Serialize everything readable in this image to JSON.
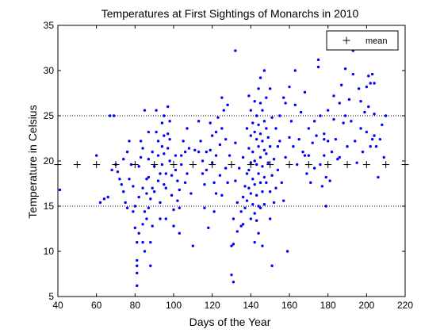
{
  "chart_data": {
    "type": "scatter",
    "title": "Temperatures at First Sightings of Monarchs in 2010",
    "xlabel": "Days of the Year",
    "ylabel": "Temperature in Celsius",
    "xlim": [
      40,
      220
    ],
    "ylim": [
      5,
      35
    ],
    "xticks": [
      40,
      60,
      80,
      100,
      120,
      140,
      160,
      180,
      200,
      220
    ],
    "yticks": [
      5,
      10,
      15,
      20,
      25,
      30,
      35
    ],
    "grid": false,
    "reference_lines": [
      25,
      15
    ],
    "legend": {
      "position": "top-right",
      "entries": [
        "mean"
      ]
    },
    "colors": {
      "scatter": "#0000ff",
      "mean": "#000000"
    },
    "series": [
      {
        "name": "mean",
        "marker": "plus",
        "x": [
          40,
          50,
          60,
          70,
          80,
          90,
          100,
          110,
          120,
          130,
          140,
          150,
          160,
          170,
          180,
          190,
          200,
          210,
          220
        ],
        "y": [
          19.6,
          19.6,
          19.6,
          19.6,
          19.6,
          19.6,
          19.6,
          19.6,
          19.6,
          19.6,
          19.6,
          19.6,
          19.6,
          19.6,
          19.6,
          19.6,
          19.6,
          19.6,
          19.6
        ]
      },
      {
        "marker": "dot",
        "points": [
          [
            41,
            16.8
          ],
          [
            60,
            20.6
          ],
          [
            62,
            15.4
          ],
          [
            64,
            15.8
          ],
          [
            66,
            16
          ],
          [
            67,
            25
          ],
          [
            69,
            25
          ],
          [
            68,
            19
          ],
          [
            70,
            19.6
          ],
          [
            71,
            18.8
          ],
          [
            72,
            18
          ],
          [
            73,
            17.4
          ],
          [
            74,
            16.6
          ],
          [
            75,
            15.4
          ],
          [
            76,
            14.8
          ],
          [
            77,
            18
          ],
          [
            78,
            19.6
          ],
          [
            74,
            20.2
          ],
          [
            76,
            21
          ],
          [
            77,
            22.2
          ],
          [
            79,
            14.4
          ],
          [
            79,
            17.2
          ],
          [
            80,
            15
          ],
          [
            80,
            12.6
          ],
          [
            81,
            11
          ],
          [
            81,
            9
          ],
          [
            81,
            8.4
          ],
          [
            81,
            7.6
          ],
          [
            81,
            6.2
          ],
          [
            82,
            12
          ],
          [
            82,
            16
          ],
          [
            82,
            19.4
          ],
          [
            83,
            20.4
          ],
          [
            83,
            22.2
          ],
          [
            84,
            21.4
          ],
          [
            84,
            17
          ],
          [
            84,
            13
          ],
          [
            84,
            11
          ],
          [
            85,
            10
          ],
          [
            85,
            14.4
          ],
          [
            85,
            25.6
          ],
          [
            86,
            18
          ],
          [
            86,
            16.4
          ],
          [
            86,
            13.6
          ],
          [
            87,
            23.2
          ],
          [
            87,
            20.2
          ],
          [
            87,
            18.2
          ],
          [
            88,
            15.8
          ],
          [
            88,
            11
          ],
          [
            88,
            8.4
          ],
          [
            89,
            12.8
          ],
          [
            89,
            17
          ],
          [
            89,
            21
          ],
          [
            90,
            19.4
          ],
          [
            90,
            16.6
          ],
          [
            91,
            25.6
          ],
          [
            91,
            23.2
          ],
          [
            92,
            20.6
          ],
          [
            92,
            22.2
          ],
          [
            92,
            17.8
          ],
          [
            93,
            18.6
          ],
          [
            93,
            15.4
          ],
          [
            93,
            13.6
          ],
          [
            94,
            24.2
          ],
          [
            94,
            21.6
          ],
          [
            94,
            19.6
          ],
          [
            95,
            25
          ],
          [
            95,
            22.8
          ],
          [
            95,
            20.8
          ],
          [
            96,
            18.6
          ],
          [
            96,
            17
          ],
          [
            96,
            13.6
          ],
          [
            97,
            26
          ],
          [
            97,
            23
          ],
          [
            97,
            21.4
          ],
          [
            98,
            24.4
          ],
          [
            98,
            22.4
          ],
          [
            98,
            20
          ],
          [
            99,
            18.4
          ],
          [
            99,
            16.2
          ],
          [
            100,
            14.6
          ],
          [
            100,
            12.8
          ],
          [
            101,
            20.6
          ],
          [
            101,
            19
          ],
          [
            102,
            17.8
          ],
          [
            102,
            15.6
          ],
          [
            103,
            14.8
          ],
          [
            103,
            12
          ],
          [
            103,
            16.8
          ],
          [
            104,
            19.6
          ],
          [
            104,
            20.6
          ],
          [
            105,
            22.2
          ],
          [
            106,
            17.6
          ],
          [
            106,
            21
          ],
          [
            107,
            18.6
          ],
          [
            107,
            23.6
          ],
          [
            108,
            21.4
          ],
          [
            109,
            16.4
          ],
          [
            110,
            10.6
          ],
          [
            111,
            21.2
          ],
          [
            113,
            24.4
          ],
          [
            113,
            21
          ],
          [
            114,
            22.2
          ],
          [
            115,
            20
          ],
          [
            115,
            18.6
          ],
          [
            116,
            17.4
          ],
          [
            116,
            14.8
          ],
          [
            117,
            21
          ],
          [
            117,
            19
          ],
          [
            118,
            12.6
          ],
          [
            119,
            24.2
          ],
          [
            119,
            21.2
          ],
          [
            120,
            22.8
          ],
          [
            120,
            19.8
          ],
          [
            121,
            17.6
          ],
          [
            121,
            14.4
          ],
          [
            122,
            16.4
          ],
          [
            122,
            20.6
          ],
          [
            123,
            24.8
          ],
          [
            124,
            21.8
          ],
          [
            124,
            18.4
          ],
          [
            125,
            16.2
          ],
          [
            125,
            23.6
          ],
          [
            126,
            25.6
          ],
          [
            127,
            22.4
          ],
          [
            127,
            19.2
          ],
          [
            128,
            17.6
          ],
          [
            128,
            26.2
          ],
          [
            129,
            20.6
          ],
          [
            130,
            10.6
          ],
          [
            130,
            7.4
          ],
          [
            131,
            6.6
          ],
          [
            131,
            10.8
          ],
          [
            131,
            13.6
          ],
          [
            132,
            32.2
          ],
          [
            132,
            22
          ],
          [
            132,
            17.8
          ],
          [
            133,
            15.4
          ],
          [
            133,
            12.2
          ],
          [
            134,
            19.2
          ],
          [
            135,
            12.8
          ],
          [
            135,
            14.4
          ],
          [
            136,
            16
          ],
          [
            136,
            13
          ],
          [
            136,
            20.4
          ],
          [
            137,
            17.2
          ],
          [
            137,
            14.8
          ],
          [
            138,
            23.6
          ],
          [
            138,
            18.6
          ],
          [
            138,
            15.6
          ],
          [
            139,
            21.4
          ],
          [
            139,
            19
          ],
          [
            139,
            17
          ],
          [
            140,
            25.6
          ],
          [
            140,
            22.8
          ],
          [
            140,
            19.8
          ],
          [
            140,
            16.4
          ],
          [
            140,
            13.6
          ],
          [
            141,
            24.2
          ],
          [
            141,
            21
          ],
          [
            141,
            18
          ],
          [
            141,
            15.2
          ],
          [
            142,
            26.6
          ],
          [
            142,
            23.2
          ],
          [
            142,
            20
          ],
          [
            142,
            17.4
          ],
          [
            142,
            14.2
          ],
          [
            142,
            11
          ],
          [
            143,
            25
          ],
          [
            143,
            22.4
          ],
          [
            143,
            19.6
          ],
          [
            143,
            16.2
          ],
          [
            143,
            13.4
          ],
          [
            144,
            28
          ],
          [
            144,
            24
          ],
          [
            144,
            21.6
          ],
          [
            144,
            18.6
          ],
          [
            144,
            15
          ],
          [
            144,
            12
          ],
          [
            145,
            29.2
          ],
          [
            145,
            26.4
          ],
          [
            145,
            23
          ],
          [
            145,
            20.4
          ],
          [
            145,
            17.6
          ],
          [
            145,
            14.8
          ],
          [
            146,
            25.6
          ],
          [
            146,
            22.2
          ],
          [
            146,
            19.4
          ],
          [
            146,
            16.6
          ],
          [
            146,
            10.6
          ],
          [
            147,
            24.4
          ],
          [
            147,
            21.2
          ],
          [
            147,
            18.2
          ],
          [
            147,
            15.2
          ],
          [
            148,
            27
          ],
          [
            148,
            23.6
          ],
          [
            148,
            20.8
          ],
          [
            148,
            17.6
          ],
          [
            149,
            22.6
          ],
          [
            149,
            19.8
          ],
          [
            150,
            16.6
          ],
          [
            150,
            13.6
          ],
          [
            150,
            21.6
          ],
          [
            151,
            24.8
          ],
          [
            151,
            18.4
          ],
          [
            151,
            8.4
          ],
          [
            152,
            20.2
          ],
          [
            152,
            15.4
          ],
          [
            153,
            23.6
          ],
          [
            153,
            17
          ],
          [
            154,
            21.6
          ],
          [
            154,
            19
          ],
          [
            155,
            25
          ],
          [
            155,
            22.2
          ],
          [
            156,
            17.6
          ],
          [
            157,
            27
          ],
          [
            158,
            20.4
          ],
          [
            158,
            26.4
          ],
          [
            159,
            10
          ],
          [
            160,
            28.2
          ],
          [
            160,
            22.6
          ],
          [
            161,
            24.4
          ],
          [
            162,
            21.6
          ],
          [
            163,
            30
          ],
          [
            163,
            26.2
          ],
          [
            164,
            19.6
          ],
          [
            165,
            22.4
          ],
          [
            166,
            25.4
          ],
          [
            167,
            21
          ],
          [
            168,
            27.6
          ],
          [
            169,
            18.6
          ],
          [
            170,
            23.6
          ],
          [
            170,
            20.6
          ],
          [
            171,
            17.6
          ],
          [
            172,
            22
          ],
          [
            173,
            24.4
          ],
          [
            173,
            19.2
          ],
          [
            174,
            22.8
          ],
          [
            175,
            30.4
          ],
          [
            175,
            31.2
          ],
          [
            176,
            19.6
          ],
          [
            176,
            25
          ],
          [
            177,
            17.2
          ],
          [
            178,
            22.4
          ],
          [
            178,
            20.6
          ],
          [
            179,
            18.2
          ],
          [
            179,
            15
          ],
          [
            180,
            25.6
          ],
          [
            180,
            22.2
          ],
          [
            181,
            17.8
          ],
          [
            182,
            21
          ],
          [
            183,
            27.2
          ],
          [
            183,
            24.6
          ],
          [
            184,
            22.4
          ],
          [
            185,
            20.2
          ],
          [
            186,
            26.4
          ],
          [
            187,
            28.4
          ],
          [
            188,
            24.2
          ],
          [
            189,
            30.2
          ],
          [
            189,
            25
          ],
          [
            190,
            21.6
          ],
          [
            191,
            26.8
          ],
          [
            192,
            24.4
          ],
          [
            193,
            32.2
          ],
          [
            193,
            29.6
          ],
          [
            194,
            22.2
          ],
          [
            195,
            19.8
          ],
          [
            196,
            28
          ],
          [
            197,
            26.6
          ],
          [
            197,
            23.6
          ],
          [
            198,
            21
          ],
          [
            199,
            25.4
          ],
          [
            200,
            28.2
          ],
          [
            200,
            23.2
          ],
          [
            201,
            29.4
          ],
          [
            201,
            26
          ],
          [
            202,
            28.6
          ],
          [
            202,
            21.6
          ],
          [
            203,
            29.6
          ],
          [
            203,
            22.4
          ],
          [
            204,
            28.6
          ],
          [
            204,
            25.2
          ],
          [
            204,
            22.8
          ],
          [
            205,
            21.6
          ],
          [
            206,
            18.2
          ],
          [
            207,
            22.4
          ],
          [
            208,
            24
          ],
          [
            209,
            20.4
          ],
          [
            210,
            25
          ],
          [
            178,
            23
          ],
          [
            147,
            30
          ],
          [
            139,
            27.2
          ],
          [
            150,
            28
          ],
          [
            122,
            23.2
          ],
          [
            95,
            17.4
          ],
          [
            87,
            14.8
          ],
          [
            125,
            27
          ],
          [
            186,
            20.4
          ],
          [
            168,
            20.6
          ],
          [
            157,
            15.6
          ]
        ]
      }
    ]
  }
}
